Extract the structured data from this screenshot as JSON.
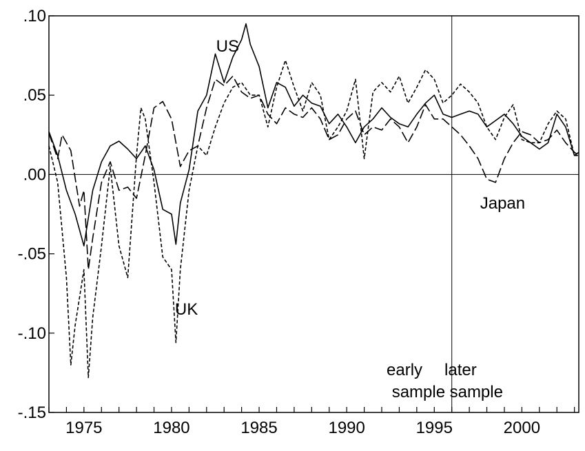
{
  "chart_data": {
    "type": "line",
    "title": "",
    "xlabel": "",
    "ylabel": "",
    "xlim": [
      1973.0,
      2003.25
    ],
    "ylim": [
      -0.15,
      0.1
    ],
    "grid": false,
    "x_ticks": [
      1975,
      1980,
      1985,
      1990,
      1995,
      2000
    ],
    "x_tick_labels": [
      "1975",
      "1980",
      "1985",
      "1990",
      "1995",
      "2000"
    ],
    "y_ticks": [
      0.1,
      0.05,
      0.0,
      -0.05,
      -0.1,
      -0.15
    ],
    "y_tick_labels": [
      ".10",
      ".05",
      ".00",
      "-.05",
      "-.10",
      "-.15"
    ],
    "reference_lines": {
      "horizontal_y": 0.0,
      "vertical_x": 1996.0
    },
    "series": [
      {
        "name": "US",
        "dash": "solid",
        "points": [
          [
            1973.0,
            0.027
          ],
          [
            1973.5,
            0.012
          ],
          [
            1974.0,
            -0.01
          ],
          [
            1974.5,
            -0.025
          ],
          [
            1975.0,
            -0.045
          ],
          [
            1975.5,
            -0.01
          ],
          [
            1976.0,
            0.008
          ],
          [
            1976.5,
            0.018
          ],
          [
            1977.0,
            0.021
          ],
          [
            1977.5,
            0.016
          ],
          [
            1978.0,
            0.01
          ],
          [
            1978.5,
            0.018
          ],
          [
            1979.0,
            0.003
          ],
          [
            1979.5,
            -0.022
          ],
          [
            1980.0,
            -0.025
          ],
          [
            1980.25,
            -0.044
          ],
          [
            1980.5,
            -0.018
          ],
          [
            1981.0,
            0.003
          ],
          [
            1981.5,
            0.04
          ],
          [
            1982.0,
            0.05
          ],
          [
            1982.5,
            0.076
          ],
          [
            1983.0,
            0.058
          ],
          [
            1983.5,
            0.074
          ],
          [
            1984.0,
            0.085
          ],
          [
            1984.25,
            0.095
          ],
          [
            1984.5,
            0.082
          ],
          [
            1985.0,
            0.068
          ],
          [
            1985.5,
            0.042
          ],
          [
            1986.0,
            0.058
          ],
          [
            1986.5,
            0.055
          ],
          [
            1987.0,
            0.043
          ],
          [
            1987.5,
            0.05
          ],
          [
            1988.0,
            0.045
          ],
          [
            1988.5,
            0.043
          ],
          [
            1989.0,
            0.032
          ],
          [
            1989.5,
            0.038
          ],
          [
            1990.0,
            0.03
          ],
          [
            1990.5,
            0.02
          ],
          [
            1991.0,
            0.03
          ],
          [
            1991.5,
            0.035
          ],
          [
            1992.0,
            0.042
          ],
          [
            1992.5,
            0.036
          ],
          [
            1993.0,
            0.032
          ],
          [
            1993.5,
            0.03
          ],
          [
            1994.0,
            0.038
          ],
          [
            1994.5,
            0.045
          ],
          [
            1995.0,
            0.05
          ],
          [
            1995.5,
            0.038
          ],
          [
            1996.0,
            0.036
          ],
          [
            1996.5,
            0.038
          ],
          [
            1997.0,
            0.04
          ],
          [
            1997.5,
            0.038
          ],
          [
            1998.0,
            0.03
          ],
          [
            1998.5,
            0.034
          ],
          [
            1999.0,
            0.038
          ],
          [
            1999.5,
            0.032
          ],
          [
            2000.0,
            0.024
          ],
          [
            2000.5,
            0.02
          ],
          [
            2001.0,
            0.016
          ],
          [
            2001.5,
            0.02
          ],
          [
            2002.0,
            0.038
          ],
          [
            2002.5,
            0.03
          ],
          [
            2003.0,
            0.012
          ],
          [
            2003.25,
            0.014
          ]
        ]
      },
      {
        "name": "UK",
        "dash": "short-dash",
        "points": [
          [
            1973.0,
            0.018
          ],
          [
            1973.5,
            -0.005
          ],
          [
            1974.0,
            -0.065
          ],
          [
            1974.25,
            -0.12
          ],
          [
            1974.5,
            -0.095
          ],
          [
            1975.0,
            -0.06
          ],
          [
            1975.25,
            -0.128
          ],
          [
            1975.5,
            -0.09
          ],
          [
            1976.0,
            -0.045
          ],
          [
            1976.5,
            0.005
          ],
          [
            1977.0,
            -0.045
          ],
          [
            1977.5,
            -0.065
          ],
          [
            1978.0,
            0.012
          ],
          [
            1978.25,
            0.042
          ],
          [
            1978.5,
            0.035
          ],
          [
            1979.0,
            -0.005
          ],
          [
            1979.5,
            -0.052
          ],
          [
            1980.0,
            -0.06
          ],
          [
            1980.25,
            -0.106
          ],
          [
            1980.5,
            -0.06
          ],
          [
            1981.0,
            -0.01
          ],
          [
            1981.5,
            0.018
          ],
          [
            1982.0,
            0.012
          ],
          [
            1982.5,
            0.03
          ],
          [
            1983.0,
            0.045
          ],
          [
            1983.5,
            0.055
          ],
          [
            1984.0,
            0.058
          ],
          [
            1984.5,
            0.05
          ],
          [
            1985.0,
            0.05
          ],
          [
            1985.5,
            0.03
          ],
          [
            1986.0,
            0.055
          ],
          [
            1986.5,
            0.072
          ],
          [
            1987.0,
            0.055
          ],
          [
            1987.5,
            0.04
          ],
          [
            1988.0,
            0.058
          ],
          [
            1988.5,
            0.05
          ],
          [
            1989.0,
            0.022
          ],
          [
            1989.5,
            0.03
          ],
          [
            1990.0,
            0.04
          ],
          [
            1990.5,
            0.06
          ],
          [
            1991.0,
            0.01
          ],
          [
            1991.5,
            0.052
          ],
          [
            1992.0,
            0.058
          ],
          [
            1992.5,
            0.052
          ],
          [
            1993.0,
            0.062
          ],
          [
            1993.5,
            0.045
          ],
          [
            1994.0,
            0.055
          ],
          [
            1994.5,
            0.066
          ],
          [
            1995.0,
            0.06
          ],
          [
            1995.5,
            0.045
          ],
          [
            1996.0,
            0.05
          ],
          [
            1996.5,
            0.057
          ],
          [
            1997.0,
            0.052
          ],
          [
            1997.5,
            0.045
          ],
          [
            1998.0,
            0.03
          ],
          [
            1998.5,
            0.022
          ],
          [
            1999.0,
            0.036
          ],
          [
            1999.5,
            0.044
          ],
          [
            2000.0,
            0.022
          ],
          [
            2000.5,
            0.02
          ],
          [
            2001.0,
            0.02
          ],
          [
            2001.5,
            0.032
          ],
          [
            2002.0,
            0.04
          ],
          [
            2002.5,
            0.035
          ],
          [
            2003.0,
            0.012
          ],
          [
            2003.25,
            0.012
          ]
        ]
      },
      {
        "name": "Japan",
        "dash": "long-dash",
        "points": [
          [
            1973.0,
            0.026
          ],
          [
            1973.5,
            0.01
          ],
          [
            1973.75,
            0.025
          ],
          [
            1974.25,
            0.015
          ],
          [
            1974.75,
            -0.02
          ],
          [
            1975.0,
            -0.01
          ],
          [
            1975.25,
            -0.06
          ],
          [
            1975.5,
            -0.04
          ],
          [
            1976.0,
            -0.005
          ],
          [
            1976.5,
            0.008
          ],
          [
            1977.0,
            -0.01
          ],
          [
            1977.5,
            -0.008
          ],
          [
            1978.0,
            -0.015
          ],
          [
            1978.5,
            0.012
          ],
          [
            1979.0,
            0.042
          ],
          [
            1979.5,
            0.046
          ],
          [
            1980.0,
            0.035
          ],
          [
            1980.5,
            0.005
          ],
          [
            1981.0,
            0.015
          ],
          [
            1981.5,
            0.018
          ],
          [
            1982.0,
            0.042
          ],
          [
            1982.5,
            0.06
          ],
          [
            1983.0,
            0.056
          ],
          [
            1983.5,
            0.062
          ],
          [
            1984.0,
            0.052
          ],
          [
            1984.5,
            0.048
          ],
          [
            1985.0,
            0.05
          ],
          [
            1985.5,
            0.038
          ],
          [
            1986.0,
            0.032
          ],
          [
            1986.5,
            0.042
          ],
          [
            1987.0,
            0.038
          ],
          [
            1987.5,
            0.036
          ],
          [
            1988.0,
            0.042
          ],
          [
            1988.5,
            0.035
          ],
          [
            1989.0,
            0.022
          ],
          [
            1989.5,
            0.025
          ],
          [
            1990.0,
            0.035
          ],
          [
            1990.5,
            0.04
          ],
          [
            1991.0,
            0.025
          ],
          [
            1991.5,
            0.03
          ],
          [
            1992.0,
            0.028
          ],
          [
            1992.5,
            0.035
          ],
          [
            1993.0,
            0.03
          ],
          [
            1993.5,
            0.02
          ],
          [
            1994.0,
            0.03
          ],
          [
            1994.5,
            0.044
          ],
          [
            1995.0,
            0.035
          ],
          [
            1995.5,
            0.035
          ],
          [
            1996.0,
            0.03
          ],
          [
            1996.5,
            0.025
          ],
          [
            1997.0,
            0.018
          ],
          [
            1997.5,
            0.01
          ],
          [
            1998.0,
            -0.003
          ],
          [
            1998.5,
            -0.005
          ],
          [
            1999.0,
            0.01
          ],
          [
            1999.5,
            0.02
          ],
          [
            2000.0,
            0.027
          ],
          [
            2000.5,
            0.025
          ],
          [
            2001.0,
            0.02
          ],
          [
            2001.5,
            0.022
          ],
          [
            2002.0,
            0.028
          ],
          [
            2002.5,
            0.02
          ],
          [
            2003.0,
            0.014
          ],
          [
            2003.25,
            0.012
          ]
        ]
      }
    ],
    "annotations": [
      {
        "text": "US",
        "x": 1983.2,
        "y": 0.081
      },
      {
        "text": "UK",
        "x": 1980.85,
        "y": -0.085
      },
      {
        "text": "Japan",
        "x": 1998.9,
        "y": -0.018
      },
      {
        "text": "early",
        "x": 1993.3,
        "y": -0.123
      },
      {
        "text": "sample",
        "x": 1994.1,
        "y": -0.137
      },
      {
        "text": "later",
        "x": 1996.5,
        "y": -0.123
      },
      {
        "text": "sample",
        "x": 1997.4,
        "y": -0.137
      }
    ]
  }
}
